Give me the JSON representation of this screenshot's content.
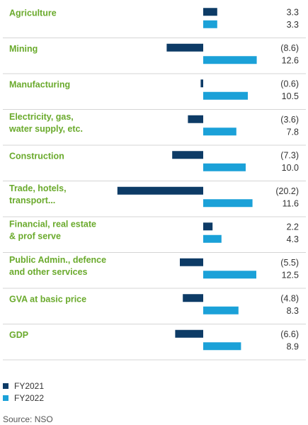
{
  "chart_data": {
    "type": "bar",
    "orientation": "horizontal",
    "categories": [
      [
        "Agriculture"
      ],
      [
        "Mining"
      ],
      [
        "Manufacturing"
      ],
      [
        "Electricity, gas,",
        "water supply, etc."
      ],
      [
        "Construction"
      ],
      [
        "Trade, hotels,",
        "transport..."
      ],
      [
        "Financial, real estate",
        "& prof serve"
      ],
      [
        "Public Admin., defence",
        "and other services"
      ],
      [
        "GVA at basic price"
      ],
      [
        "GDP"
      ]
    ],
    "series": [
      {
        "name": "FY2021",
        "color": "#0d3b66",
        "values": [
          3.3,
          -8.6,
          -0.6,
          -3.6,
          -7.3,
          -20.2,
          2.2,
          -5.5,
          -4.8,
          -6.6
        ],
        "labels": [
          "3.3",
          "(8.6)",
          "(0.6)",
          "(3.6)",
          "(7.3)",
          "(20.2)",
          "2.2",
          "(5.5)",
          "(4.8)",
          "(6.6)"
        ]
      },
      {
        "name": "FY2022",
        "color": "#1ba1d8",
        "values": [
          3.3,
          12.6,
          10.5,
          7.8,
          10.0,
          11.6,
          4.3,
          12.5,
          8.3,
          8.9
        ],
        "labels": [
          "3.3",
          "12.6",
          "10.5",
          "7.8",
          "10.0",
          "11.6",
          "4.3",
          "12.5",
          "8.3",
          "8.9"
        ]
      }
    ],
    "category_label_color": "#6aaa2c",
    "legend_placement": "bottom-left",
    "grid": false
  },
  "legend": {
    "fy2021": "FY2021",
    "fy2022": "FY2022"
  },
  "source": "Source: NSO"
}
